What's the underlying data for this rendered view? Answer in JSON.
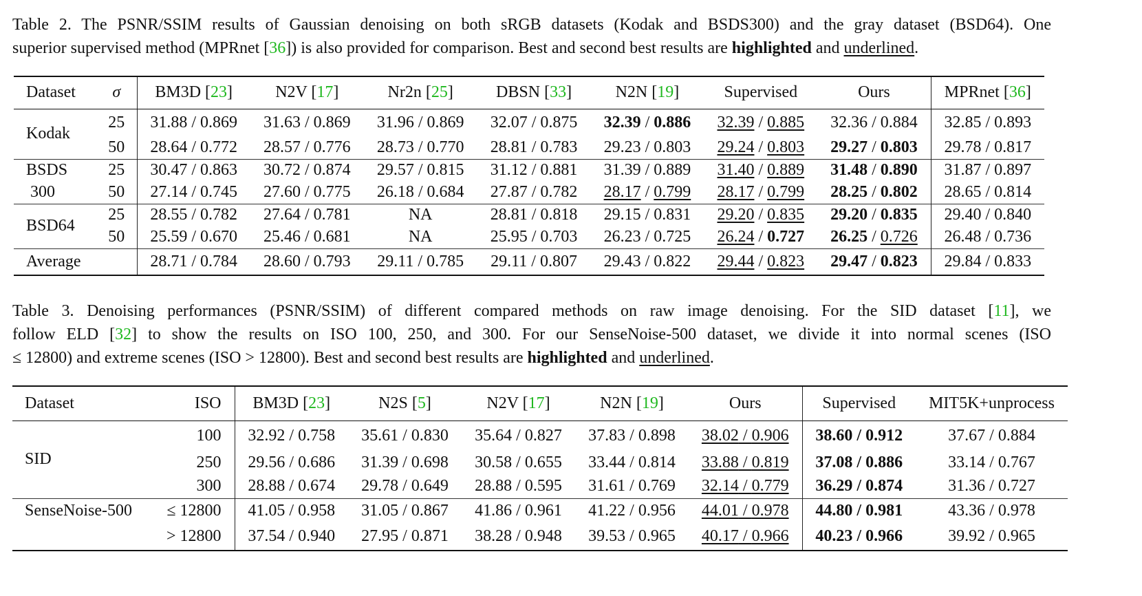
{
  "colors": {
    "citation": "#1fb81f",
    "text": "#111111"
  },
  "table2": {
    "caption_lines": [
      [
        {
          "t": "Table 2. The PSNR/SSIM results of Gaussian denoising on both sRGB datasets (Kodak and BSDS300) and the gray dataset (BSD64). One"
        }
      ],
      [
        {
          "t": "superior supervised method (MPRnet ["
        },
        {
          "t": "36",
          "f": "cite"
        },
        {
          "t": "]) is also provided for comparison. Best and second best results are "
        },
        {
          "t": "highlighted",
          "f": "b"
        },
        {
          "t": " and "
        },
        {
          "t": "underlined",
          "f": "u"
        },
        {
          "t": "."
        }
      ]
    ],
    "header": {
      "dataset": "Dataset",
      "sigma": "σ",
      "methods": [
        {
          "name": "BM3D",
          "ref": "23"
        },
        {
          "name": "N2V",
          "ref": "17"
        },
        {
          "name": "Nr2n",
          "ref": "25"
        },
        {
          "name": "DBSN",
          "ref": "33"
        },
        {
          "name": "N2N",
          "ref": "19"
        },
        {
          "name": "Supervised",
          "ref": null
        },
        {
          "name": "Ours",
          "ref": null
        },
        {
          "name": "MPRnet",
          "ref": "36"
        }
      ]
    },
    "rows": [
      {
        "dataset": "Kodak",
        "span": 2,
        "sigma": "25",
        "cells": [
          {
            "p": "31.88",
            "s": "0.869"
          },
          {
            "p": "31.63",
            "s": "0.869"
          },
          {
            "p": "31.96",
            "s": "0.869"
          },
          {
            "p": "32.07",
            "s": "0.875"
          },
          {
            "p": "32.39",
            "s": "0.886",
            "pf": "b",
            "sf": "b"
          },
          {
            "p": "32.39",
            "s": "0.885",
            "pf": "u",
            "sf": "u"
          },
          {
            "p": "32.36",
            "s": "0.884"
          },
          {
            "p": "32.85",
            "s": "0.893"
          }
        ]
      },
      {
        "sigma": "50",
        "cells": [
          {
            "p": "28.64",
            "s": "0.772"
          },
          {
            "p": "28.57",
            "s": "0.776"
          },
          {
            "p": "28.73",
            "s": "0.770"
          },
          {
            "p": "28.81",
            "s": "0.783"
          },
          {
            "p": "29.23",
            "s": "0.803"
          },
          {
            "p": "29.24",
            "s": "0.803",
            "pf": "u",
            "sf": "u"
          },
          {
            "p": "29.27",
            "s": "0.803",
            "pf": "b",
            "sf": "b"
          },
          {
            "p": "29.78",
            "s": "0.817"
          }
        ]
      },
      {
        "dataset": "BSDS",
        "span": 1,
        "group": true,
        "sigma": "25",
        "cells": [
          {
            "p": "30.47",
            "s": "0.863"
          },
          {
            "p": "30.72",
            "s": "0.874"
          },
          {
            "p": "29.57",
            "s": "0.815"
          },
          {
            "p": "31.12",
            "s": "0.881"
          },
          {
            "p": "31.39",
            "s": "0.889"
          },
          {
            "p": "31.40",
            "s": "0.889",
            "pf": "u",
            "sf": "u"
          },
          {
            "p": "31.48",
            "s": "0.890",
            "pf": "b",
            "sf": "b"
          },
          {
            "p": "31.87",
            "s": "0.897"
          }
        ]
      },
      {
        "dataset": " 300",
        "span": 1,
        "sigma": "50",
        "cells": [
          {
            "p": "27.14",
            "s": "0.745"
          },
          {
            "p": "27.60",
            "s": "0.775"
          },
          {
            "p": "26.18",
            "s": "0.684"
          },
          {
            "p": "27.87",
            "s": "0.782"
          },
          {
            "p": "28.17",
            "s": "0.799",
            "pf": "u",
            "sf": "u"
          },
          {
            "p": "28.17",
            "s": "0.799",
            "pf": "u",
            "sf": "u"
          },
          {
            "p": "28.25",
            "s": "0.802",
            "pf": "b",
            "sf": "b"
          },
          {
            "p": "28.65",
            "s": "0.814"
          }
        ]
      },
      {
        "dataset": "BSD64",
        "span": 2,
        "group": true,
        "sigma": "25",
        "cells": [
          {
            "p": "28.55",
            "s": "0.782"
          },
          {
            "p": "27.64",
            "s": "0.781"
          },
          {
            "na": "NA"
          },
          {
            "p": "28.81",
            "s": "0.818"
          },
          {
            "p": "29.15",
            "s": "0.831"
          },
          {
            "p": "29.20",
            "s": "0.835",
            "pf": "u",
            "sf": "u"
          },
          {
            "p": "29.20",
            "s": "0.835",
            "pf": "b",
            "sf": "b"
          },
          {
            "p": "29.40",
            "s": "0.840"
          }
        ]
      },
      {
        "sigma": "50",
        "cells": [
          {
            "p": "25.59",
            "s": "0.670"
          },
          {
            "p": "25.46",
            "s": "0.681"
          },
          {
            "na": "NA"
          },
          {
            "p": "25.95",
            "s": "0.703"
          },
          {
            "p": "26.23",
            "s": "0.725"
          },
          {
            "p": "26.24",
            "s": "0.727",
            "pf": "u",
            "sf": "b"
          },
          {
            "p": "26.25",
            "s": "0.726",
            "pf": "b",
            "sf": "u"
          },
          {
            "p": "26.48",
            "s": "0.736"
          }
        ]
      },
      {
        "dataset": "Average",
        "span": 1,
        "group": true,
        "sigma": "",
        "cells": [
          {
            "p": "28.71",
            "s": "0.784"
          },
          {
            "p": "28.60",
            "s": "0.793"
          },
          {
            "p": "29.11",
            "s": "0.785"
          },
          {
            "p": "29.11",
            "s": "0.807"
          },
          {
            "p": "29.43",
            "s": "0.822"
          },
          {
            "p": "29.44",
            "s": "0.823",
            "pf": "u",
            "sf": "u"
          },
          {
            "p": "29.47",
            "s": "0.823",
            "pf": "b",
            "sf": "b"
          },
          {
            "p": "29.84",
            "s": "0.833"
          }
        ]
      }
    ]
  },
  "table3": {
    "caption_lines": [
      [
        {
          "t": "Table 3.  Denoising performances (PSNR/SSIM) of different compared methods on raw image denoising.  For the SID dataset ["
        },
        {
          "t": "11",
          "f": "cite"
        },
        {
          "t": "], we"
        }
      ],
      [
        {
          "t": "follow ELD ["
        },
        {
          "t": "32",
          "f": "cite"
        },
        {
          "t": "] to show the results on ISO 100, 250, and 300.  For our SenseNoise-500 dataset, we divide it into normal scenes (ISO"
        }
      ],
      [
        {
          "t": "≤ 12800) and extreme scenes (ISO > 12800). Best and second best results are "
        },
        {
          "t": "highlighted",
          "f": "b"
        },
        {
          "t": " and "
        },
        {
          "t": "underlined",
          "f": "u"
        },
        {
          "t": "."
        }
      ]
    ],
    "header": {
      "dataset": "Dataset",
      "iso": "ISO",
      "methods": [
        {
          "name": "BM3D",
          "ref": "23"
        },
        {
          "name": "N2S",
          "ref": "5"
        },
        {
          "name": "N2V",
          "ref": "17"
        },
        {
          "name": "N2N",
          "ref": "19"
        },
        {
          "name": "Ours",
          "ref": null
        },
        {
          "name": "Supervised",
          "ref": null
        },
        {
          "name": "MIT5K+unprocess",
          "ref": null
        }
      ]
    },
    "rows": [
      {
        "dataset": "SID",
        "span": 3,
        "iso": "100",
        "cells": [
          {
            "p": "32.92",
            "s": "0.758"
          },
          {
            "p": "35.61",
            "s": "0.830"
          },
          {
            "p": "35.64",
            "s": "0.827"
          },
          {
            "p": "37.83",
            "s": "0.898"
          },
          {
            "p": "38.02",
            "s": "0.906",
            "f": "u"
          },
          {
            "p": "38.60",
            "s": "0.912",
            "f": "b"
          },
          {
            "p": "37.67",
            "s": "0.884"
          }
        ]
      },
      {
        "iso": "250",
        "cells": [
          {
            "p": "29.56",
            "s": "0.686"
          },
          {
            "p": "31.39",
            "s": "0.698"
          },
          {
            "p": "30.58",
            "s": "0.655"
          },
          {
            "p": "33.44",
            "s": "0.814"
          },
          {
            "p": "33.88",
            "s": "0.819",
            "f": "u"
          },
          {
            "p": "37.08",
            "s": "0.886",
            "f": "b"
          },
          {
            "p": "33.14",
            "s": "0.767"
          }
        ]
      },
      {
        "iso": "300",
        "cells": [
          {
            "p": "28.88",
            "s": "0.674"
          },
          {
            "p": "29.78",
            "s": "0.649"
          },
          {
            "p": "28.88",
            "s": "0.595"
          },
          {
            "p": "31.61",
            "s": "0.769"
          },
          {
            "p": "32.14",
            "s": "0.779",
            "f": "u"
          },
          {
            "p": "36.29",
            "s": "0.874",
            "f": "b"
          },
          {
            "p": "31.36",
            "s": "0.727"
          }
        ]
      },
      {
        "dataset": "SenseNoise-500",
        "span": 1,
        "group": true,
        "iso": "≤ 12800",
        "cells": [
          {
            "p": "41.05",
            "s": "0.958"
          },
          {
            "p": "31.05",
            "s": "0.867"
          },
          {
            "p": "41.86",
            "s": "0.961"
          },
          {
            "p": "41.22",
            "s": "0.956"
          },
          {
            "p": "44.01",
            "s": "0.978",
            "f": "u"
          },
          {
            "p": "44.80",
            "s": "0.981",
            "f": "b"
          },
          {
            "p": "43.36",
            "s": "0.978"
          }
        ]
      },
      {
        "dataset": "",
        "span": 1,
        "iso": "> 12800",
        "cells": [
          {
            "p": "37.54",
            "s": "0.940"
          },
          {
            "p": "27.95",
            "s": "0.871"
          },
          {
            "p": "38.28",
            "s": "0.948"
          },
          {
            "p": "39.53",
            "s": "0.965"
          },
          {
            "p": "40.17",
            "s": "0.966",
            "f": "u"
          },
          {
            "p": "40.23",
            "s": "0.966",
            "f": "b"
          },
          {
            "p": "39.92",
            "s": "0.965"
          }
        ]
      }
    ]
  }
}
